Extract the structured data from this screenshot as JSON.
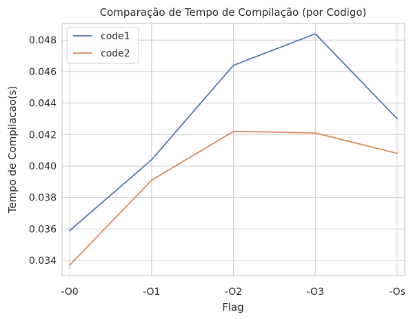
{
  "chart_data": {
    "type": "line",
    "title": "Comparação de Tempo de Compilação (por Codigo)",
    "xlabel": "Flag",
    "ylabel": "Tempo de Compilacao(s)",
    "categories": [
      "-O0",
      "-O1",
      "-O2",
      "-O3",
      "-Os"
    ],
    "series": [
      {
        "name": "code1",
        "color": "#4c72b0",
        "values": [
          0.0359,
          0.0404,
          0.0464,
          0.0484,
          0.043
        ]
      },
      {
        "name": "code2",
        "color": "#dd8452",
        "values": [
          0.0337,
          0.0391,
          0.0422,
          0.0421,
          0.0408
        ]
      }
    ],
    "ylim": [
      0.03304,
      0.04906
    ],
    "yticks": [
      0.034,
      0.036,
      0.038,
      0.04,
      0.042,
      0.044,
      0.046,
      0.048
    ],
    "ytick_labels": [
      "0.034",
      "0.036",
      "0.038",
      "0.040",
      "0.042",
      "0.044",
      "0.046",
      "0.048"
    ],
    "grid": true,
    "legend_position": "top-left",
    "background": "#ffffff",
    "grid_color": "#cccccc"
  }
}
